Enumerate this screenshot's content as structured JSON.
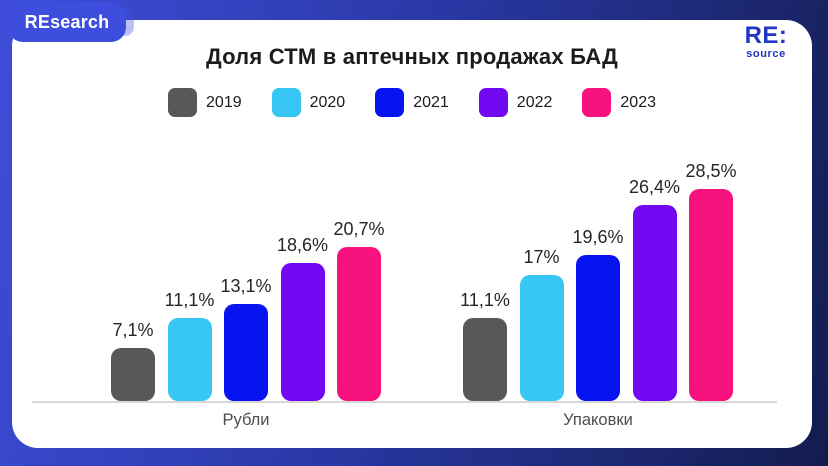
{
  "frame": {
    "brand_badge": "REsearch",
    "logo_top": "RE:",
    "logo_bottom": "source"
  },
  "colors": {
    "frame_gradient_start": "#3E4EDA",
    "frame_gradient_end": "#131C4E",
    "badge_bg": "#3E4EDC",
    "logo_blue": "#2236C4",
    "title_text": "#1c1c1e",
    "axis_line": "#D8D8D8",
    "group_label_text": "#4d4d4d"
  },
  "chart_data": {
    "type": "bar",
    "title": "Доля СТМ в аптечных продажах БАД",
    "legend_position": "top",
    "grid": false,
    "ylim": [
      0,
      30
    ],
    "categories": [
      "2019",
      "2020",
      "2021",
      "2022",
      "2023"
    ],
    "series_colors": [
      "#58585A",
      "#38C6F4",
      "#0814EF",
      "#7108F2",
      "#F81280"
    ],
    "groups": [
      {
        "label": "Рубли",
        "values": [
          7.1,
          11.1,
          13.1,
          18.6,
          20.7
        ],
        "value_labels": [
          "7,1%",
          "11,1%",
          "13,1%",
          "18,6%",
          "20,7%"
        ]
      },
      {
        "label": "Упаковки",
        "values": [
          11.1,
          17,
          19.6,
          26.4,
          28.5
        ],
        "value_labels": [
          "11,1%",
          "17%",
          "19,6%",
          "26,4%",
          "28,5%"
        ]
      }
    ]
  }
}
